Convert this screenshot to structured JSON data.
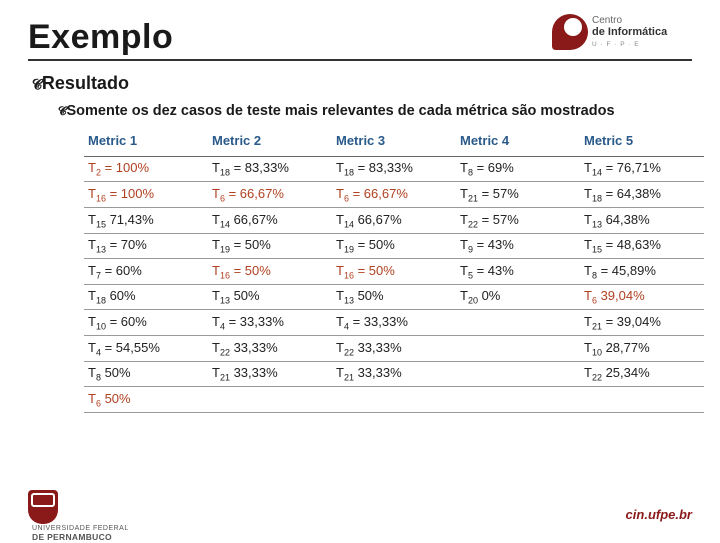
{
  "title": "Exemplo",
  "bullet1": "Resultado",
  "bullet2": "Somente os dez casos de teste mais relevantes de cada métrica são mostrados",
  "table": {
    "headers": [
      "Metric 1",
      "Metric 2",
      "Metric 3",
      "Metric 4",
      "Metric 5"
    ],
    "header_color": "#2a5a8a",
    "highlight_color": "#b04020",
    "rows": [
      [
        {
          "t": "T",
          "s": "2",
          "sep": " = ",
          "v": "100%",
          "hl": true
        },
        {
          "t": "T",
          "s": "18",
          "sep": " = ",
          "v": "83,33%"
        },
        {
          "t": "T",
          "s": "18",
          "sep": " = ",
          "v": "83,33%"
        },
        {
          "t": "T",
          "s": "8",
          "sep": " = ",
          "v": "69%"
        },
        {
          "t": "T",
          "s": "14",
          "sep": " = ",
          "v": "76,71%"
        }
      ],
      [
        {
          "t": "T",
          "s": "16",
          "sep": " = ",
          "v": "100%",
          "hl": true
        },
        {
          "t": "T",
          "s": "6",
          "sep": " = ",
          "v": "66,67%",
          "hl": true
        },
        {
          "t": "T",
          "s": "6",
          "sep": " = ",
          "v": "66,67%",
          "hl": true
        },
        {
          "t": "T",
          "s": "21",
          "sep": " = ",
          "v": "57%"
        },
        {
          "t": "T",
          "s": "18",
          "sep": " = ",
          "v": "64,38%"
        }
      ],
      [
        {
          "t": "T",
          "s": "15",
          "sep": "   ",
          "v": "71,43%"
        },
        {
          "t": "T",
          "s": "14",
          "sep": "   ",
          "v": "66,67%"
        },
        {
          "t": "T",
          "s": "14",
          "sep": "   ",
          "v": "66,67%"
        },
        {
          "t": "T",
          "s": "22",
          "sep": " = ",
          "v": "57%"
        },
        {
          "t": "T",
          "s": "13",
          "sep": "   ",
          "v": "64,38%"
        }
      ],
      [
        {
          "t": "T",
          "s": "13",
          "sep": " = ",
          "v": "70%"
        },
        {
          "t": "T",
          "s": "19",
          "sep": " = ",
          "v": "50%"
        },
        {
          "t": "T",
          "s": "19",
          "sep": " = ",
          "v": "50%"
        },
        {
          "t": "T",
          "s": "9",
          "sep": " = ",
          "v": "43%"
        },
        {
          "t": "T",
          "s": "15",
          "sep": " = ",
          "v": "48,63%"
        }
      ],
      [
        {
          "t": "T",
          "s": "7",
          "sep": " = ",
          "v": "60%"
        },
        {
          "t": "T",
          "s": "16",
          "sep": " = ",
          "v": "50%",
          "hl": true
        },
        {
          "t": "T",
          "s": "16",
          "sep": " = ",
          "v": "50%",
          "hl": true
        },
        {
          "t": "T",
          "s": "5",
          "sep": " = ",
          "v": "43%"
        },
        {
          "t": "T",
          "s": "8",
          "sep": " = ",
          "v": "45,89%"
        }
      ],
      [
        {
          "t": "T",
          "s": "18",
          "sep": "   ",
          "v": "60%"
        },
        {
          "t": "T",
          "s": "13",
          "sep": "   ",
          "v": "50%"
        },
        {
          "t": "T",
          "s": "13",
          "sep": "   ",
          "v": "50%"
        },
        {
          "t": "T",
          "s": "20",
          "sep": "   ",
          "v": "0%"
        },
        {
          "t": "T",
          "s": "6",
          "sep": "   ",
          "v": "39,04%",
          "hl": true
        }
      ],
      [
        {
          "t": "T",
          "s": "10",
          "sep": " = ",
          "v": "60%"
        },
        {
          "t": "T",
          "s": "4",
          "sep": " = ",
          "v": "33,33%"
        },
        {
          "t": "T",
          "s": "4",
          "sep": " = ",
          "v": "33,33%"
        },
        null,
        {
          "t": "T",
          "s": "21",
          "sep": " = ",
          "v": "39,04%"
        }
      ],
      [
        {
          "t": "T",
          "s": "4",
          "sep": " = ",
          "v": "54,55%"
        },
        {
          "t": "T",
          "s": "22",
          "sep": "   ",
          "v": "33,33%"
        },
        {
          "t": "T",
          "s": "22",
          "sep": "   ",
          "v": "33,33%"
        },
        null,
        {
          "t": "T",
          "s": "10",
          "sep": "   ",
          "v": "28,77%"
        }
      ],
      [
        {
          "t": "T",
          "s": "8",
          "sep": "   ",
          "v": "50%"
        },
        {
          "t": "T",
          "s": "21",
          "sep": "   ",
          "v": "33,33%"
        },
        {
          "t": "T",
          "s": "21",
          "sep": "   ",
          "v": "33,33%"
        },
        null,
        {
          "t": "T",
          "s": "22",
          "sep": "   ",
          "v": "25,34%"
        }
      ],
      [
        {
          "t": "T",
          "s": "6",
          "sep": "   ",
          "v": "50%",
          "hl": true
        },
        null,
        null,
        null,
        null
      ]
    ]
  },
  "logos": {
    "top": {
      "line1": "Centro",
      "line2": "de Informática",
      "line3": "U · F · P · E"
    },
    "bottomLeft": {
      "line1": "UNIVERSIDADE FEDERAL",
      "line2": "DE PERNAMBUCO"
    },
    "bottomRight": "cin.ufpe.br"
  }
}
